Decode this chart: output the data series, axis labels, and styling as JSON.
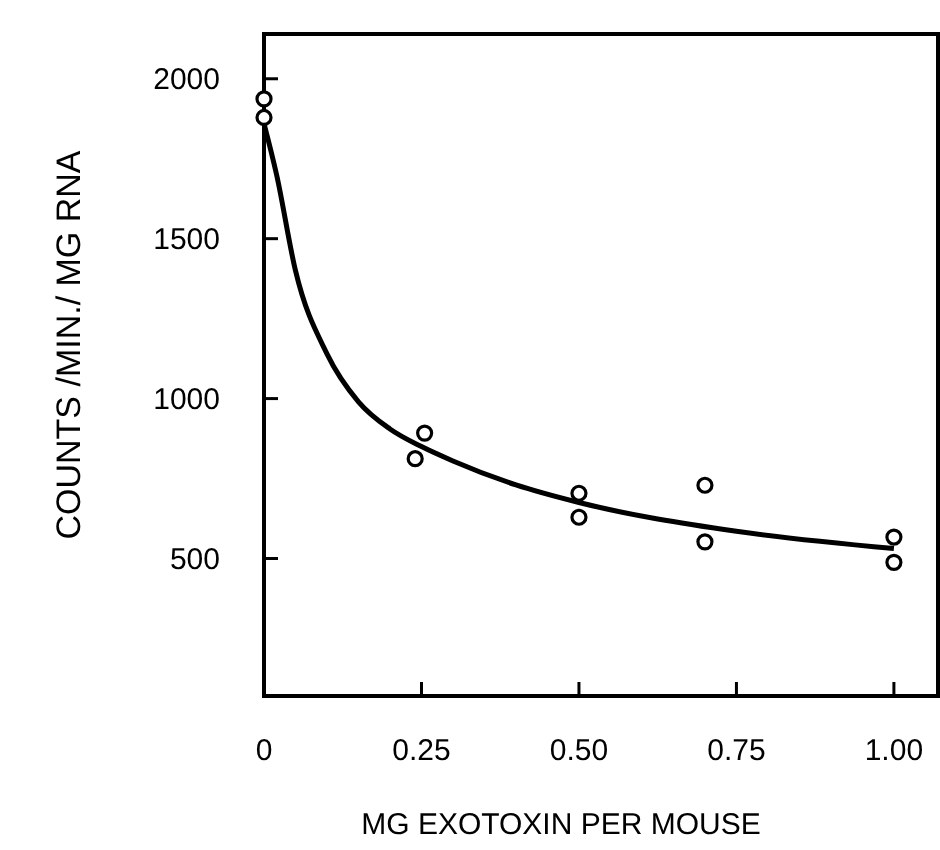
{
  "chart_data": {
    "type": "scatter",
    "xlabel": "MG  EXOTOXIN  PER  MOUSE",
    "ylabel": "COUNTS  /MIN./ MG  RNA",
    "xlim": [
      0,
      1.07
    ],
    "ylim": [
      70,
      2140
    ],
    "xticks": [
      {
        "value": 0,
        "label": "0"
      },
      {
        "value": 0.25,
        "label": "0.25"
      },
      {
        "value": 0.5,
        "label": "0.50"
      },
      {
        "value": 0.75,
        "label": "0.75"
      },
      {
        "value": 1,
        "label": "1.00"
      }
    ],
    "yticks": [
      500,
      1000,
      1500,
      2000
    ],
    "grid": false,
    "marker": "circle",
    "series": [
      {
        "type": "scatter",
        "color": "#000000",
        "x": [
          0,
          0,
          0.255,
          0.24,
          0.5,
          0.5,
          0.7,
          0.7,
          1,
          1
        ],
        "values": [
          1937,
          1879,
          892,
          812,
          704,
          629,
          729,
          552,
          567,
          488
        ]
      },
      {
        "type": "line",
        "color": "#000000",
        "marker": "none",
        "x": [
          0,
          0.02,
          0.05,
          0.1,
          0.15,
          0.2,
          0.25,
          0.3,
          0.4,
          0.5,
          0.75,
          1
        ],
        "values": [
          1860,
          1700,
          1400,
          1140,
          990,
          905,
          850,
          805,
          730,
          675,
          585,
          531
        ]
      }
    ]
  }
}
